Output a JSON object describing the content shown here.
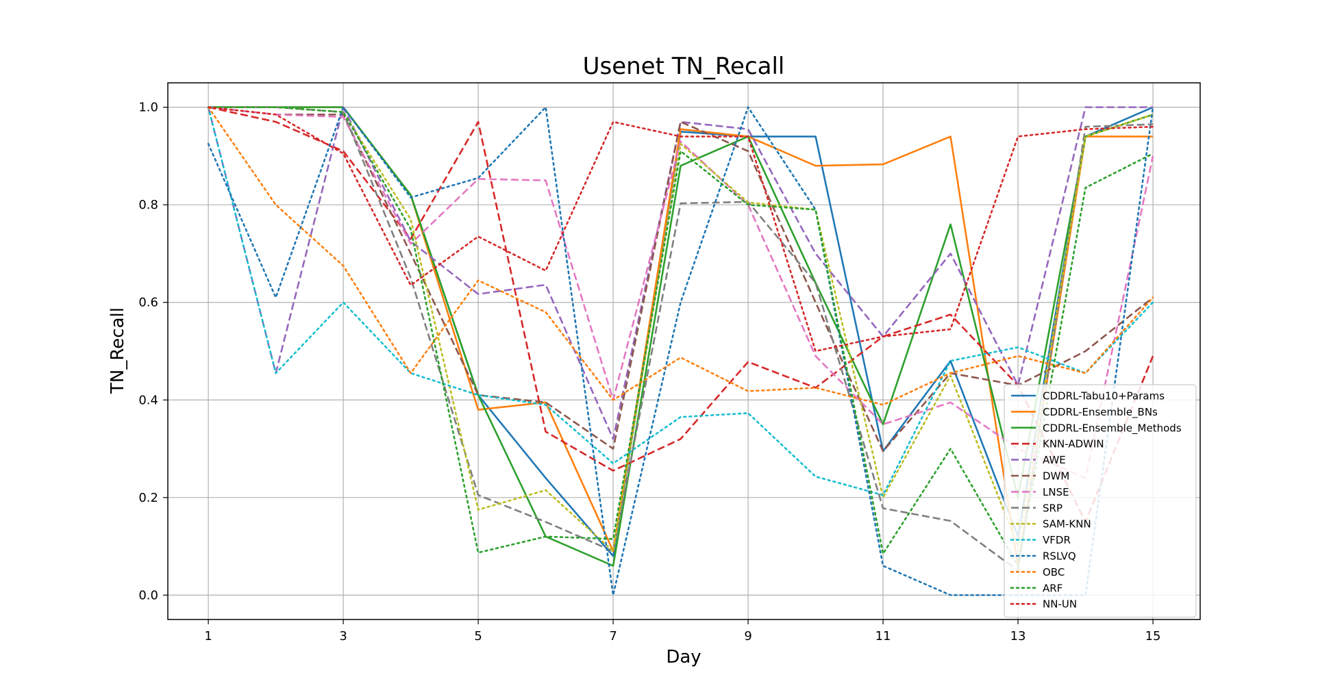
{
  "chart_data": {
    "type": "line",
    "title": "Usenet TN_Recall",
    "xlabel": "Day",
    "ylabel": "TN_Recall",
    "x": [
      1,
      2,
      3,
      4,
      5,
      6,
      7,
      8,
      9,
      10,
      11,
      12,
      13,
      14,
      15
    ],
    "xticks": [
      "1",
      "3",
      "5",
      "7",
      "9",
      "11",
      "13",
      "15"
    ],
    "yticks": [
      "0.0",
      "0.2",
      "0.4",
      "0.6",
      "0.8",
      "1.0"
    ],
    "xlim": [
      0.4,
      15.7
    ],
    "ylim": [
      -0.05,
      1.05
    ],
    "grid": true,
    "legend_position": "lower-right",
    "series": [
      {
        "name": "CDDRL-Tabu10+Params",
        "color": "#1f77b4",
        "style": "solid",
        "values": [
          1.0,
          1.0,
          1.0,
          0.82,
          0.41,
          0.24,
          0.08,
          0.95,
          0.94,
          0.94,
          0.295,
          0.48,
          0.12,
          0.94,
          1.0
        ]
      },
      {
        "name": "CDDRL-Ensemble_BNs",
        "color": "#ff7f0e",
        "style": "solid",
        "values": [
          1.0,
          1.0,
          1.0,
          0.82,
          0.38,
          0.395,
          0.09,
          0.955,
          0.94,
          0.88,
          0.883,
          0.94,
          0.06,
          0.94,
          0.94
        ]
      },
      {
        "name": "CDDRL-Ensemble_Methods",
        "color": "#2ca02c",
        "style": "solid",
        "values": [
          1.0,
          1.0,
          1.0,
          0.82,
          0.41,
          0.12,
          0.06,
          0.88,
          0.94,
          0.64,
          0.35,
          0.76,
          0.2,
          0.94,
          0.985
        ]
      },
      {
        "name": "KNN-ADWIN",
        "color": "#d62728",
        "style": "dashed",
        "values": [
          1.0,
          0.97,
          0.91,
          0.73,
          0.97,
          0.335,
          0.255,
          0.32,
          0.478,
          0.425,
          0.53,
          0.575,
          0.43,
          0.15,
          0.49
        ]
      },
      {
        "name": "AWE",
        "color": "#9467bd",
        "style": "dashed",
        "values": [
          1.0,
          0.455,
          1.0,
          0.725,
          0.617,
          0.636,
          0.32,
          0.97,
          0.955,
          0.7,
          0.53,
          0.7,
          0.43,
          1.0,
          1.0
        ]
      },
      {
        "name": "DWM",
        "color": "#8c564b",
        "style": "dashed",
        "values": [
          1.0,
          0.985,
          0.985,
          0.7,
          0.41,
          0.395,
          0.3,
          0.97,
          0.91,
          0.6,
          0.295,
          0.455,
          0.43,
          0.5,
          0.61
        ]
      },
      {
        "name": "LNSE",
        "color": "#e377c2",
        "style": "dashed",
        "values": [
          1.0,
          0.985,
          0.98,
          0.72,
          0.853,
          0.85,
          0.4,
          0.93,
          0.8,
          0.49,
          0.35,
          0.395,
          0.3,
          0.24,
          0.9
        ]
      },
      {
        "name": "SRP",
        "color": "#7f7f7f",
        "style": "dashed",
        "values": [
          1.0,
          1.0,
          0.99,
          0.65,
          0.205,
          0.15,
          0.09,
          0.803,
          0.806,
          0.64,
          0.178,
          0.152,
          0.05,
          0.96,
          0.965
        ]
      },
      {
        "name": "SAM-KNN",
        "color": "#bcbd22",
        "style": "dotted",
        "values": [
          1.0,
          1.0,
          0.99,
          0.77,
          0.175,
          0.215,
          0.09,
          0.925,
          0.805,
          0.79,
          0.2,
          0.45,
          0.1,
          0.94,
          0.985
        ]
      },
      {
        "name": "VFDR",
        "color": "#17becf",
        "style": "dotted",
        "values": [
          1.0,
          0.455,
          0.6,
          0.455,
          0.41,
          0.39,
          0.27,
          0.365,
          0.373,
          0.243,
          0.205,
          0.48,
          0.508,
          0.455,
          0.6
        ]
      },
      {
        "name": "RSLVQ",
        "color": "#1f77b4",
        "style": "dotted",
        "values": [
          0.925,
          0.61,
          1.0,
          0.815,
          0.855,
          1.0,
          0.0,
          0.6,
          1.0,
          0.79,
          0.06,
          0.0,
          0.0,
          0.0,
          1.0
        ]
      },
      {
        "name": "OBC",
        "color": "#ff7f0e",
        "style": "dotted",
        "values": [
          1.0,
          0.8,
          0.675,
          0.455,
          0.645,
          0.58,
          0.4,
          0.487,
          0.418,
          0.425,
          0.39,
          0.455,
          0.49,
          0.455,
          0.61
        ]
      },
      {
        "name": "ARF",
        "color": "#2ca02c",
        "style": "dotted",
        "values": [
          1.0,
          1.0,
          0.99,
          0.75,
          0.087,
          0.12,
          0.115,
          0.91,
          0.8,
          0.79,
          0.085,
          0.3,
          0.06,
          0.835,
          0.905
        ]
      },
      {
        "name": "NN-UN",
        "color": "#d62728",
        "style": "dotted",
        "values": [
          1.0,
          0.985,
          0.905,
          0.635,
          0.735,
          0.665,
          0.97,
          0.94,
          0.94,
          0.5,
          0.53,
          0.545,
          0.94,
          0.955,
          0.96
        ]
      }
    ]
  }
}
